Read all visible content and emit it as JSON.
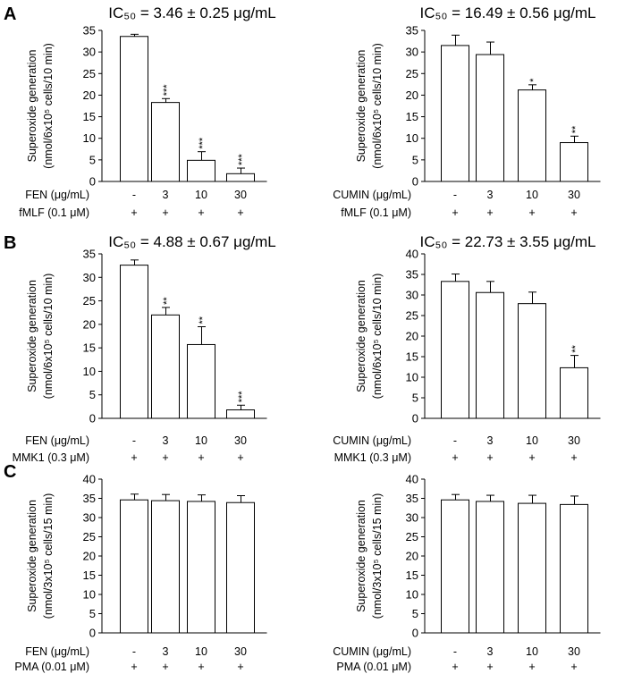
{
  "panel_letters": [
    "A",
    "B",
    "C"
  ],
  "y_axis_title": {
    "line1": "Superoxide generation",
    "line2_A_B": "(nmol/6x10⁵ cells/10 min)",
    "line2_C": "(nmol/3x10⁵ cells/15 min)"
  },
  "row_labels": {
    "fen": "FEN (μg/mL)",
    "cumin": "CUMIN (μg/mL)",
    "stim_A": "fMLF (0.1 μM)",
    "stim_B": "MMK1 (0.3 μM)",
    "stim_C": "PMA (0.01 μM)"
  },
  "chart_data": [
    {
      "type": "bar",
      "panel": "A",
      "side": "left",
      "title": "IC₅₀ = 3.46 ± 0.25 μg/mL",
      "categories": [
        "-",
        "3",
        "10",
        "30"
      ],
      "values": [
        33.6,
        18.3,
        4.9,
        1.8
      ],
      "errors": [
        0.5,
        0.9,
        2.0,
        1.3
      ],
      "significance": [
        "",
        "***",
        "***",
        "***"
      ],
      "stimulus": [
        "+",
        "+",
        "+",
        "+"
      ],
      "ylim": [
        0,
        35
      ],
      "yticks": [
        0,
        5,
        10,
        15,
        20,
        25,
        30,
        35
      ]
    },
    {
      "type": "bar",
      "panel": "A",
      "side": "right",
      "title": "IC₅₀ = 16.49 ± 0.56 μg/mL",
      "categories": [
        "-",
        "3",
        "10",
        "30"
      ],
      "values": [
        31.5,
        29.4,
        21.2,
        9.0
      ],
      "errors": [
        2.4,
        2.9,
        1.2,
        1.5
      ],
      "significance": [
        "",
        "",
        "*",
        "**"
      ],
      "stimulus": [
        "+",
        "+",
        "+",
        "+"
      ],
      "ylim": [
        0,
        35
      ],
      "yticks": [
        0,
        5,
        10,
        15,
        20,
        25,
        30,
        35
      ]
    },
    {
      "type": "bar",
      "panel": "B",
      "side": "left",
      "title": "IC₅₀ = 4.88 ± 0.67 μg/mL",
      "categories": [
        "-",
        "3",
        "10",
        "30"
      ],
      "values": [
        32.6,
        22.0,
        15.7,
        1.8
      ],
      "errors": [
        1.1,
        1.6,
        3.8,
        1.0
      ],
      "significance": [
        "",
        "**",
        "**",
        "***"
      ],
      "stimulus": [
        "+",
        "+",
        "+",
        "+"
      ],
      "ylim": [
        0,
        35
      ],
      "yticks": [
        0,
        5,
        10,
        15,
        20,
        25,
        30,
        35
      ]
    },
    {
      "type": "bar",
      "panel": "B",
      "side": "right",
      "title": "IC₅₀ = 22.73 ± 3.55 μg/mL",
      "categories": [
        "-",
        "3",
        "10",
        "30"
      ],
      "values": [
        33.3,
        30.6,
        27.9,
        12.3
      ],
      "errors": [
        1.8,
        2.7,
        2.8,
        3.0
      ],
      "significance": [
        "",
        "",
        "",
        "**"
      ],
      "stimulus": [
        "+",
        "+",
        "+",
        "+"
      ],
      "ylim": [
        0,
        40
      ],
      "yticks": [
        0,
        5,
        10,
        15,
        20,
        25,
        30,
        35,
        40
      ]
    },
    {
      "type": "bar",
      "panel": "C",
      "side": "left",
      "title": "",
      "categories": [
        "-",
        "3",
        "10",
        "30"
      ],
      "values": [
        34.6,
        34.4,
        34.2,
        33.9
      ],
      "errors": [
        1.5,
        1.6,
        1.7,
        1.8
      ],
      "significance": [
        "",
        "",
        "",
        ""
      ],
      "stimulus": [
        "+",
        "+",
        "+",
        "+"
      ],
      "ylim": [
        0,
        40
      ],
      "yticks": [
        0,
        5,
        10,
        15,
        20,
        25,
        30,
        35,
        40
      ]
    },
    {
      "type": "bar",
      "panel": "C",
      "side": "right",
      "title": "",
      "categories": [
        "-",
        "3",
        "10",
        "30"
      ],
      "values": [
        34.6,
        34.2,
        33.7,
        33.4
      ],
      "errors": [
        1.4,
        1.6,
        2.1,
        2.2
      ],
      "significance": [
        "",
        "",
        "",
        ""
      ],
      "stimulus": [
        "+",
        "+",
        "+",
        "+"
      ],
      "ylim": [
        0,
        40
      ],
      "yticks": [
        0,
        5,
        10,
        15,
        20,
        25,
        30,
        35,
        40
      ]
    }
  ]
}
